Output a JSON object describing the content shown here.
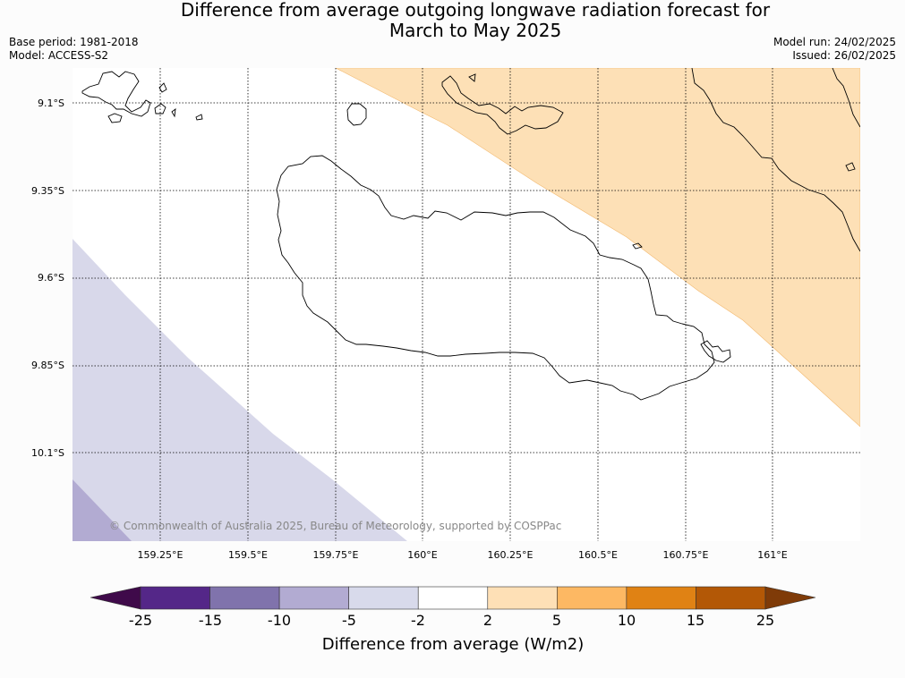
{
  "title": {
    "line1": "Difference from average outgoing longwave radiation forecast for",
    "line2": "March to May 2025"
  },
  "meta": {
    "base_period": "Base period: 1981-2018",
    "model": "Model: ACCESS-S2",
    "model_run": "Model run: 24/02/2025",
    "issued": "Issued: 26/02/2025"
  },
  "map": {
    "lat_labels": [
      "9.1°S",
      "9.35°S",
      "9.6°S",
      "9.85°S",
      "10.1°S"
    ],
    "lon_labels": [
      "159.25°E",
      "159.5°E",
      "159.75°E",
      "160°E",
      "160.25°E",
      "160.5°E",
      "160.75°E",
      "161°E"
    ],
    "credit": "© Commonwealth of Australia 2025, Bureau of Meteorology, supported by COSPPac",
    "shading_colors": {
      "above_2_to_5": "#fde0b6",
      "below_minus2_to_minus5": "#d8d8ea",
      "below_minus5_to_minus10": "#b2abd2"
    }
  },
  "colorbar": {
    "title": "Difference from average (W/m2)",
    "tick_labels": [
      "-25",
      "-15",
      "-10",
      "-5",
      "-2",
      "2",
      "5",
      "10",
      "15",
      "25"
    ],
    "colors": [
      "#3f0a4a",
      "#542788",
      "#8073ac",
      "#b2abd2",
      "#d8daeb",
      "#ffffff",
      "#fee0b6",
      "#fdb863",
      "#e08214",
      "#b35806",
      "#7f3b08"
    ]
  }
}
